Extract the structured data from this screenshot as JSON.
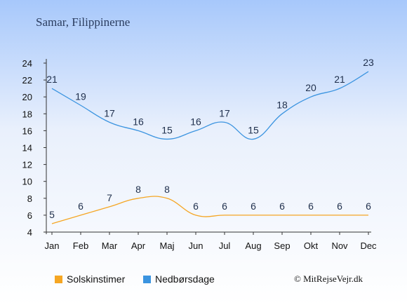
{
  "header": {
    "title": "Samar, Filippinerne"
  },
  "colors": {
    "sun": "#f5a623",
    "rain": "#3b94e0",
    "axis": "#333333",
    "label": "#1f2f4c"
  },
  "chart_data": {
    "type": "line",
    "categories": [
      "Jan",
      "Feb",
      "Mar",
      "Apr",
      "Maj",
      "Jun",
      "Jul",
      "Aug",
      "Sep",
      "Okt",
      "Nov",
      "Dec"
    ],
    "series": [
      {
        "name": "Nedbørsdage",
        "color": "#3b94e0",
        "values": [
          21,
          19,
          17,
          16,
          15,
          16,
          17,
          15,
          18,
          20,
          21,
          23
        ]
      },
      {
        "name": "Solskinstimer",
        "color": "#f5a623",
        "values": [
          5,
          6,
          7,
          8,
          8,
          6,
          6,
          6,
          6,
          6,
          6,
          6
        ]
      }
    ],
    "ylim": [
      4,
      24
    ],
    "yticks": [
      4,
      6,
      8,
      10,
      12,
      14,
      16,
      18,
      20,
      22,
      24
    ],
    "legend_position": "bottom"
  },
  "legend": [
    {
      "label": "Solskinstimer",
      "color": "#f5a623"
    },
    {
      "label": "Nedbørsdage",
      "color": "#3b94e0"
    }
  ],
  "footer": {
    "copyright": "© MitRejseVejr.dk"
  }
}
